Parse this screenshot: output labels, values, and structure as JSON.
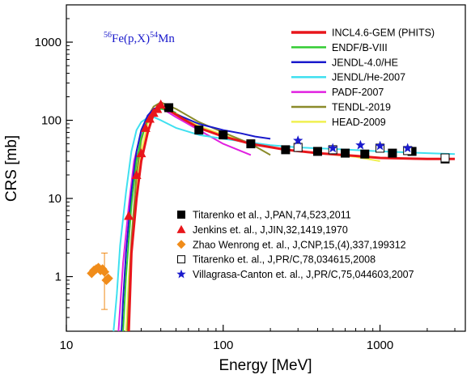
{
  "chart_data": {
    "type": "line",
    "title_parts": {
      "mass1": "56",
      "reaction": "Fe(p,X)",
      "mass2": "54",
      "product": "Mn"
    },
    "xlabel": "Energy [MeV]",
    "ylabel": "CRS [mb]",
    "xscale": "log",
    "yscale": "log",
    "xlim": [
      10,
      3500
    ],
    "ylim": [
      0.2,
      3000
    ],
    "xticks": [
      10,
      100,
      1000
    ],
    "xtick_labels": [
      "10",
      "100",
      "1000"
    ],
    "yticks": [
      1,
      10,
      100,
      1000
    ],
    "ytick_labels": [
      "1",
      "10",
      "100",
      "1000"
    ],
    "grid": false,
    "legend_lines_position": "top-right",
    "legend_points_position": "bottom-right",
    "series": [
      {
        "name": "INCL4.6-GEM (PHITS)",
        "color": "#e8161b",
        "width": 3,
        "x": [
          25,
          26,
          28,
          30,
          33,
          36,
          40,
          45,
          55,
          70,
          100,
          150,
          250,
          400,
          700,
          1000,
          2000,
          3000
        ],
        "y": [
          0.2,
          2,
          10,
          30,
          70,
          120,
          150,
          135,
          105,
          80,
          62,
          50,
          42,
          38,
          35,
          33,
          32,
          32
        ]
      },
      {
        "name": "ENDF/B-VIII",
        "color": "#33cc33",
        "width": 2,
        "x": [
          23,
          24,
          26,
          28,
          30,
          33,
          36,
          40,
          45,
          50
        ],
        "y": [
          0.2,
          1,
          8,
          30,
          60,
          100,
          125,
          140,
          135,
          125
        ]
      },
      {
        "name": "JENDL-4.0/HE",
        "color": "#1a1acc",
        "width": 2,
        "x": [
          22.5,
          23,
          24,
          26,
          28,
          30,
          33,
          36,
          40,
          50,
          70,
          100,
          130,
          160,
          200
        ],
        "y": [
          0.2,
          0.5,
          2,
          12,
          40,
          75,
          115,
          140,
          150,
          120,
          90,
          75,
          68,
          62,
          58
        ]
      },
      {
        "name": "JENDL/He-2007",
        "color": "#3fe0f0",
        "width": 2,
        "x": [
          20,
          21,
          22,
          24,
          26,
          28,
          30,
          33,
          36,
          40,
          50,
          70,
          100,
          150,
          200,
          300,
          500,
          1000,
          2000,
          3000
        ],
        "y": [
          0.2,
          0.6,
          2.5,
          12,
          40,
          75,
          95,
          108,
          110,
          100,
          80,
          65,
          58,
          52,
          48,
          45,
          43,
          40,
          38,
          37
        ]
      },
      {
        "name": "PADF-2007",
        "color": "#e020e0",
        "width": 2,
        "x": [
          21.5,
          22,
          23,
          25,
          27,
          30,
          33,
          36,
          40,
          50,
          70,
          100,
          150
        ],
        "y": [
          0.2,
          0.4,
          1.5,
          8,
          30,
          70,
          110,
          140,
          145,
          110,
          75,
          50,
          36
        ]
      },
      {
        "name": "TENDL-2019",
        "color": "#8b8b2a",
        "width": 2,
        "x": [
          24.5,
          25,
          26,
          28,
          30,
          33,
          36,
          40,
          50,
          70,
          100,
          150,
          200
        ],
        "y": [
          0.2,
          0.5,
          3,
          20,
          55,
          110,
          150,
          170,
          140,
          95,
          70,
          50,
          36
        ]
      },
      {
        "name": "HEAD-2009",
        "color": "#f0f050",
        "width": 2,
        "x": [
          24,
          25,
          27,
          30,
          33,
          36,
          40,
          45,
          55,
          70,
          100,
          150,
          250,
          400,
          700,
          1000
        ],
        "y": [
          0.2,
          1,
          8,
          40,
          90,
          130,
          150,
          140,
          110,
          85,
          65,
          50,
          42,
          38,
          34,
          30
        ]
      }
    ],
    "point_series": [
      {
        "name": "Titarenko et al., J,PAN,74,523,2011",
        "marker": "square",
        "color": "#000000",
        "filled": true,
        "x": [
          45,
          70,
          100,
          150,
          250,
          400,
          600,
          800,
          1200,
          1600,
          2600
        ],
        "y": [
          145,
          75,
          65,
          50,
          42,
          40,
          38,
          37,
          38,
          40,
          32
        ]
      },
      {
        "name": "Jenkins et. al., J,JIN,32,1419,1970",
        "marker": "triangle",
        "color": "#e8161b",
        "filled": true,
        "x": [
          25,
          28,
          30,
          32,
          34,
          36,
          38,
          40
        ],
        "y": [
          6,
          20,
          38,
          80,
          105,
          125,
          140,
          160
        ]
      },
      {
        "name": "Zhao Wenrong et. al., J,CNP,15,(4),337,199312",
        "marker": "diamond",
        "color": "#f08c1a",
        "filled": true,
        "x": [
          14.5,
          15,
          15.5,
          16,
          16.5,
          17,
          17.5,
          18,
          18.5
        ],
        "y": [
          1.1,
          1.2,
          1.25,
          1.3,
          1.2,
          1.25,
          1.15,
          0.9,
          0.95
        ],
        "errbar": {
          "x": 17.5,
          "low": 0.38,
          "high": 2.0
        }
      },
      {
        "name": "Titarenko et. al., J,PR/C,78,034615,2008",
        "marker": "square",
        "color": "#000000",
        "filled": false,
        "x": [
          300,
          500,
          1000,
          1500,
          2600
        ],
        "y": [
          45,
          42,
          44,
          41,
          33
        ]
      },
      {
        "name": "Villagrasa-Canton et. al., J,PR/C,75,044603,2007",
        "marker": "star",
        "color": "#1a1acc",
        "filled": true,
        "x": [
          300,
          500,
          750,
          1000,
          1500
        ],
        "y": [
          55,
          44,
          48,
          47,
          44
        ]
      }
    ]
  }
}
